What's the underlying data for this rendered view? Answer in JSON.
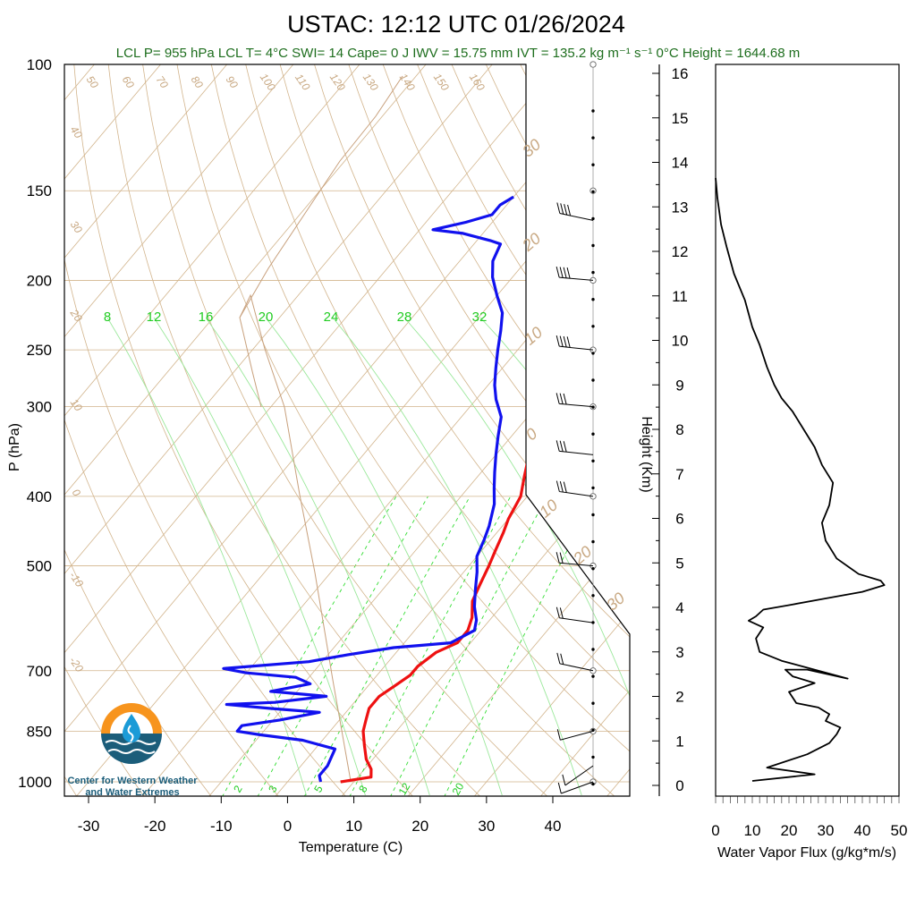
{
  "header": {
    "title": "USTAC: 12:12 UTC 01/26/2024",
    "subtitle": "LCL P= 955 hPa  LCL T= 4°C  SWI= 14  Cape= 0 J  IWV = 15.75 mm  IVT = 135.2 kg m⁻¹ s⁻¹  0°C Height = 1644.68 m"
  },
  "logo": {
    "line1": "Center for Western Weather",
    "line2": "and Water Extremes"
  },
  "colors": {
    "temperature": "#ee1111",
    "dewpoint": "#1111ee",
    "dry_adiabat": "#d2b48c",
    "mixing_ratio": "#33dd33",
    "wvflux": "#000000"
  },
  "chart_data": [
    {
      "type": "line",
      "name": "skew-t",
      "xlabel": "Temperature (C)",
      "ylabel": "P (hPa)",
      "xlim": [
        -35,
        52
      ],
      "ylim": [
        1020,
        100
      ],
      "x_ticks": [
        -30,
        -20,
        -10,
        0,
        10,
        20,
        30,
        40
      ],
      "y_ticks": [
        100,
        150,
        200,
        250,
        300,
        400,
        500,
        700,
        850,
        1000
      ],
      "dry_adiabat_labels": [
        "50",
        "60",
        "70",
        "80",
        "90",
        "100",
        "110",
        "120",
        "130",
        "140",
        "150",
        "160",
        "40",
        "30",
        "20",
        "10",
        "0",
        "-10",
        "-20"
      ],
      "isotherm_labels": [
        "30",
        "20",
        "10",
        "0",
        "10",
        "20",
        "30"
      ],
      "mixing_ratio_labels_top": [
        "8",
        "12",
        "16",
        "20",
        "24",
        "28",
        "32"
      ],
      "mixing_ratio_labels_bottom": [
        "2",
        "3",
        "5",
        "8",
        "12",
        "20"
      ],
      "series": [
        {
          "name": "Temperature",
          "points": [
            [
              8,
              1000
            ],
            [
              12,
              985
            ],
            [
              11,
              960
            ],
            [
              9,
              930
            ],
            [
              7,
              890
            ],
            [
              5,
              850
            ],
            [
              4,
              820
            ],
            [
              3,
              790
            ],
            [
              3,
              760
            ],
            [
              4,
              735
            ],
            [
              5,
              710
            ],
            [
              5,
              690
            ],
            [
              6,
              660
            ],
            [
              8,
              640
            ],
            [
              8,
              615
            ],
            [
              7,
              590
            ],
            [
              5,
              560
            ],
            [
              4,
              530
            ],
            [
              3,
              500
            ],
            [
              2,
              475
            ],
            [
              1,
              450
            ],
            [
              0,
              430
            ],
            [
              -1,
              400
            ],
            [
              -3,
              375
            ],
            [
              -5,
              350
            ],
            [
              -7,
              325
            ],
            [
              -10,
              300
            ],
            [
              -13,
              280
            ],
            [
              -15,
              265
            ],
            [
              -17,
              250
            ],
            [
              -19,
              235
            ],
            [
              -21,
              220
            ],
            [
              -23,
              205
            ],
            [
              -24,
              192
            ],
            [
              -23,
              182
            ],
            [
              -20,
              176
            ],
            [
              -13,
              175
            ],
            [
              -6,
              170
            ],
            [
              -1,
              165
            ],
            [
              -2,
              158
            ],
            [
              0,
              153
            ],
            [
              4,
              150
            ]
          ]
        },
        {
          "name": "Dewpoint",
          "points": [
            [
              5,
              1000
            ],
            [
              4,
              980
            ],
            [
              4,
              950
            ],
            [
              3,
              900
            ],
            [
              -3,
              875
            ],
            [
              -10,
              860
            ],
            [
              -14,
              850
            ],
            [
              -14,
              835
            ],
            [
              -9,
              820
            ],
            [
              -4,
              800
            ],
            [
              -12,
              790
            ],
            [
              -19,
              780
            ],
            [
              -12,
              775
            ],
            [
              -5,
              760
            ],
            [
              -14,
              748
            ],
            [
              -9,
              730
            ],
            [
              -12,
              715
            ],
            [
              -20,
              705
            ],
            [
              -24,
              695
            ],
            [
              -12,
              680
            ],
            [
              -7,
              665
            ],
            [
              -1,
              650
            ],
            [
              7,
              640
            ],
            [
              9,
              615
            ],
            [
              8,
              595
            ],
            [
              6,
              570
            ],
            [
              4,
              540
            ],
            [
              2,
              510
            ],
            [
              0,
              485
            ],
            [
              -1,
              460
            ],
            [
              -2,
              440
            ],
            [
              -4,
              410
            ],
            [
              -6,
              390
            ],
            [
              -8,
              370
            ],
            [
              -10,
              350
            ],
            [
              -12,
              330
            ],
            [
              -14,
              310
            ],
            [
              -17,
              293
            ],
            [
              -19,
              280
            ],
            [
              -21,
              265
            ],
            [
              -23,
              250
            ],
            [
              -25,
              235
            ],
            [
              -27,
              222
            ],
            [
              -30,
              210
            ],
            [
              -33,
              198
            ],
            [
              -35,
              188
            ],
            [
              -36,
              178
            ],
            [
              -38,
              176
            ],
            [
              -43,
              172
            ],
            [
              -48,
              170
            ],
            [
              -44,
              166
            ],
            [
              -41,
              162
            ],
            [
              -41,
              157
            ],
            [
              -40,
              153
            ]
          ]
        }
      ],
      "wind_barbs_pressures": [
        1000,
        950,
        850,
        700,
        600,
        500,
        400,
        350,
        300,
        250,
        200,
        165
      ]
    },
    {
      "type": "line",
      "name": "water-vapor-flux",
      "xlabel": "Water Vapor Flux (g/kg*m/s)",
      "ylabel": "Height (Km)",
      "xlim": [
        0,
        50
      ],
      "ylim": [
        -0.2,
        16.5
      ],
      "x_ticks": [
        0,
        10,
        20,
        30,
        40,
        50
      ],
      "y_ticks": [
        0,
        1,
        2,
        3,
        4,
        5,
        6,
        7,
        8,
        9,
        10,
        11,
        12,
        13,
        14,
        15,
        16
      ],
      "x": [
        10,
        27,
        14,
        25,
        31,
        33,
        34,
        30,
        31,
        28,
        22,
        20,
        27,
        21,
        19,
        25,
        36,
        18,
        12,
        11,
        13,
        9,
        11,
        13,
        20,
        30,
        40,
        46,
        45,
        39,
        33,
        30,
        29,
        31,
        32,
        29,
        27,
        24,
        21,
        18,
        16,
        14,
        12,
        10,
        8,
        5,
        3,
        1.5,
        0.5,
        0
      ],
      "y": [
        0.1,
        0.25,
        0.4,
        0.7,
        0.95,
        1.15,
        1.3,
        1.45,
        1.6,
        1.75,
        1.85,
        2.1,
        2.3,
        2.45,
        2.6,
        2.6,
        2.4,
        2.8,
        3.0,
        3.3,
        3.55,
        3.7,
        3.8,
        3.95,
        4.05,
        4.2,
        4.35,
        4.5,
        4.6,
        4.75,
        5.1,
        5.5,
        5.9,
        6.3,
        6.8,
        7.2,
        7.6,
        8.0,
        8.4,
        8.7,
        9.0,
        9.4,
        9.9,
        10.3,
        10.9,
        11.5,
        12.1,
        12.6,
        13.2,
        13.65
      ]
    }
  ]
}
